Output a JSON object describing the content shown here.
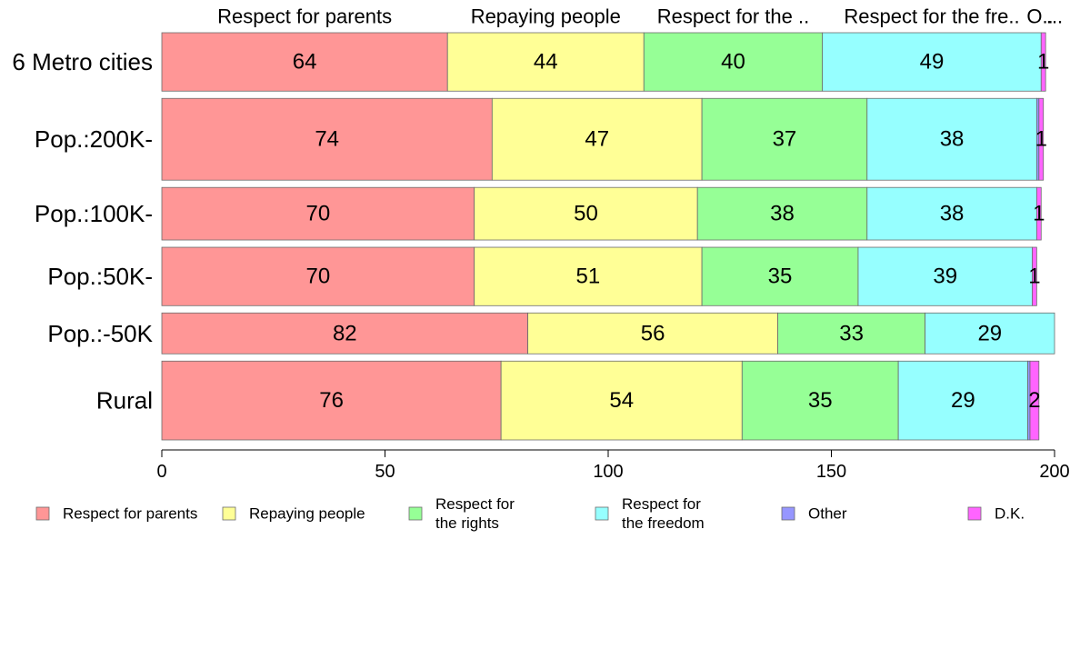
{
  "chart_data": {
    "type": "bar",
    "orientation": "horizontal",
    "stacked": true,
    "categories": [
      "6 Metro cities",
      "Pop.:200K-",
      "Pop.:100K-",
      "Pop.:50K-",
      "Pop.:-50K",
      "Rural"
    ],
    "series": [
      {
        "name": "Respect for parents",
        "values": [
          64,
          74,
          70,
          70,
          82,
          76
        ],
        "color": "#ff9696"
      },
      {
        "name": "Repaying people",
        "values": [
          44,
          47,
          50,
          51,
          56,
          54
        ],
        "color": "#ffff96"
      },
      {
        "name": "Respect for the rights",
        "values": [
          40,
          37,
          38,
          35,
          33,
          35
        ],
        "color": "#96ff96"
      },
      {
        "name": "Respect for the freedom",
        "values": [
          49,
          38,
          38,
          39,
          29,
          29
        ],
        "color": "#96ffff"
      },
      {
        "name": "Other",
        "values": [
          0,
          0.5,
          0,
          0,
          0,
          0.5
        ],
        "color": "#9696ff"
      },
      {
        "name": "D.K.",
        "values": [
          1,
          1,
          1,
          1,
          0,
          2
        ],
        "color": "#ff64ff"
      }
    ],
    "bar_weights": [
      1,
      1.4,
      0.9,
      1.0,
      0.7,
      1.35
    ],
    "segment_labels": [
      [
        "64",
        "44",
        "40",
        "49",
        "",
        "1"
      ],
      [
        "74",
        "47",
        "37",
        "38",
        "",
        "1"
      ],
      [
        "70",
        "50",
        "38",
        "38",
        "",
        "1"
      ],
      [
        "70",
        "51",
        "35",
        "39",
        "",
        "1"
      ],
      [
        "82",
        "56",
        "33",
        "29",
        "",
        ""
      ],
      [
        "76",
        "54",
        "35",
        "29",
        "",
        "2"
      ]
    ],
    "top_labels": [
      "Respect for parents",
      "Repaying people",
      "Respect for the ..",
      "Respect for the fre..",
      "O..",
      "..."
    ],
    "xlim": [
      0,
      200
    ],
    "xticks": [
      0,
      50,
      100,
      150,
      200
    ],
    "legend": [
      {
        "lines": [
          "Respect for parents"
        ],
        "color": "#ff9696"
      },
      {
        "lines": [
          "Repaying people"
        ],
        "color": "#ffff96"
      },
      {
        "lines": [
          "Respect for",
          "the rights"
        ],
        "color": "#96ff96"
      },
      {
        "lines": [
          "Respect for",
          "the freedom"
        ],
        "color": "#96ffff"
      },
      {
        "lines": [
          "Other"
        ],
        "color": "#9696ff"
      },
      {
        "lines": [
          "D.K."
        ],
        "color": "#ff64ff"
      }
    ],
    "legend_position": "bottom",
    "grid": false
  }
}
